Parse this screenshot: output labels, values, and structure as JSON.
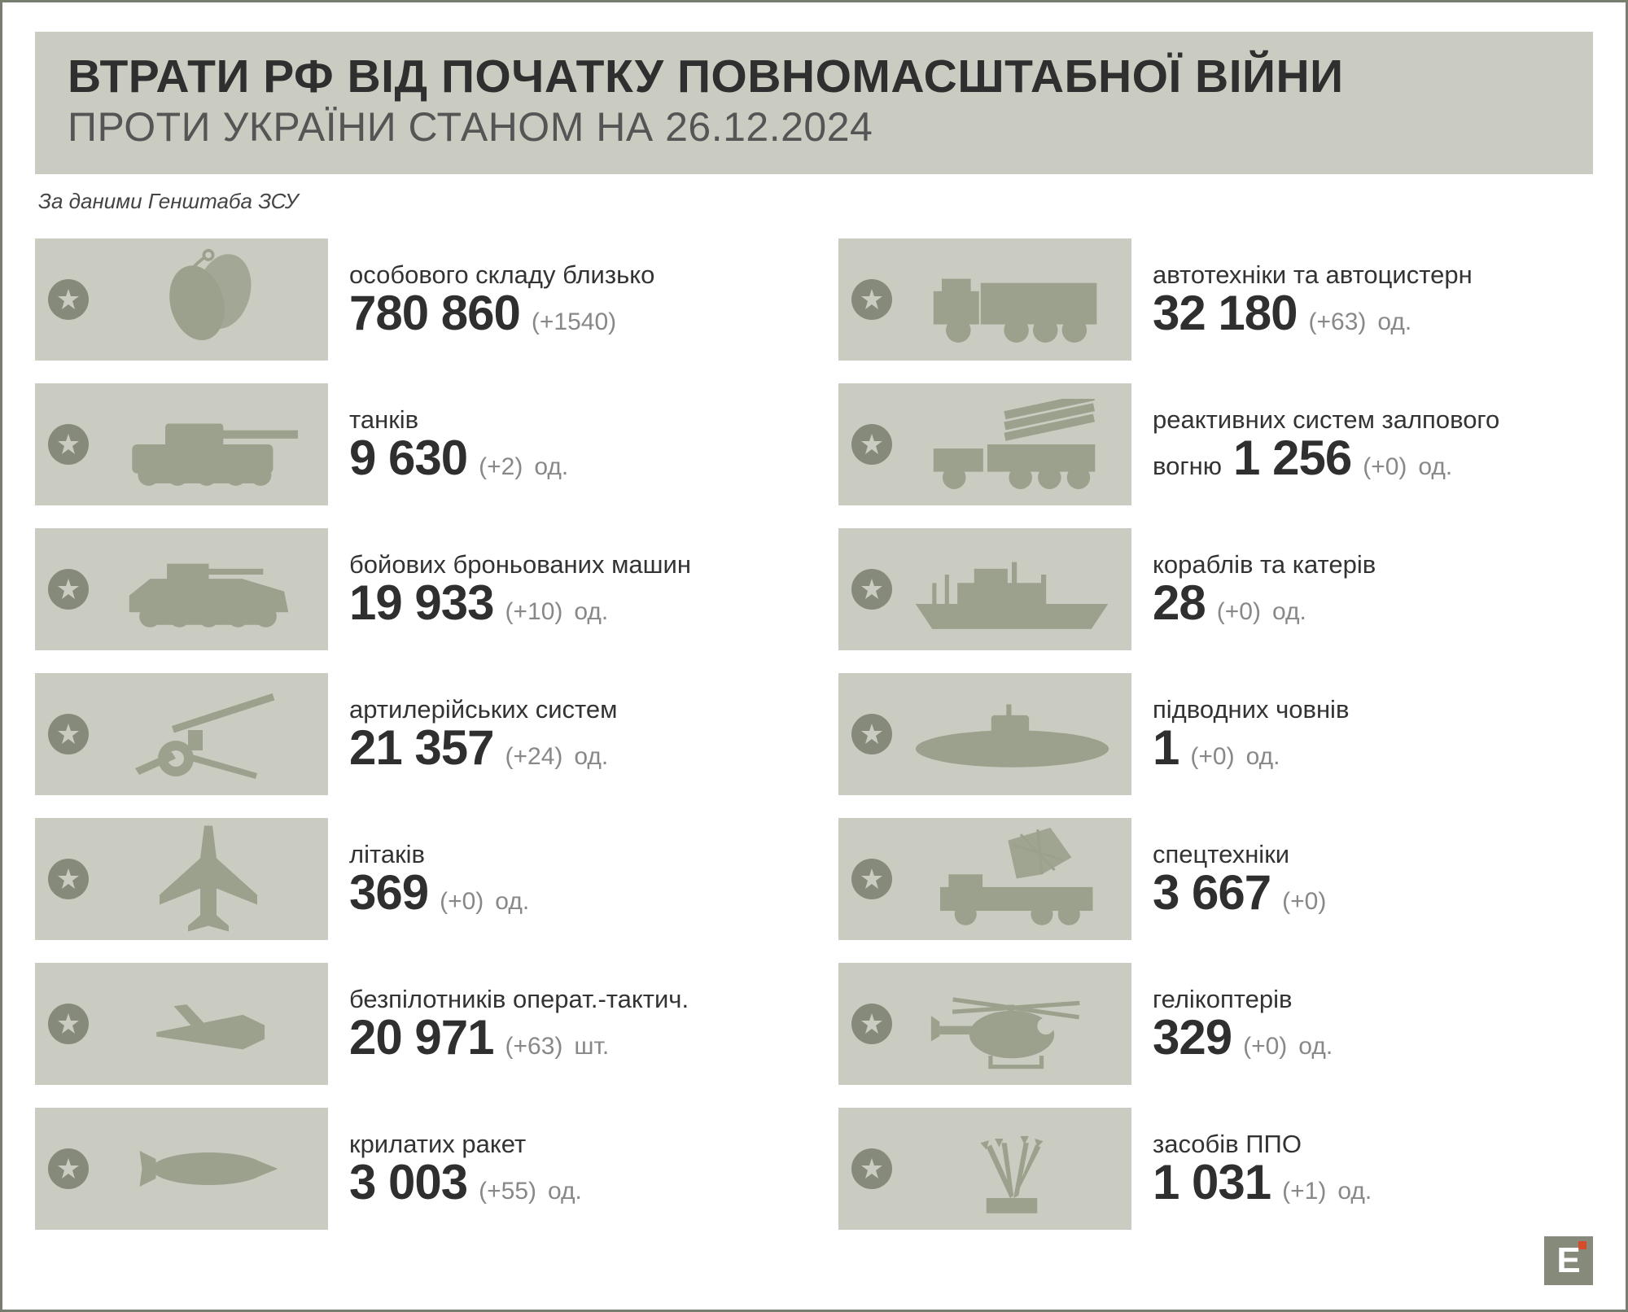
{
  "header": {
    "title": "ВТРАТИ РФ ВІД ПОЧАТКУ ПОВНОМАСШТАБНОЇ ВІЙНИ",
    "subtitle": "ПРОТИ УКРАЇНИ СТАНОМ НА 26.12.2024",
    "source": "За даними Генштаба ЗСУ"
  },
  "style": {
    "bg": "#ffffff",
    "block_bg": "#cbccc1",
    "silhouette_fill": "#9ba18d",
    "badge_fill": "#868a7b",
    "title_color": "#2f2f2f",
    "value_color": "#2f2f2f",
    "delta_color": "#888888",
    "border_color": "#787e6f",
    "title_fontsize": 57,
    "subtitle_fontsize": 50,
    "value_fontsize": 60,
    "label_fontsize": 31
  },
  "columns": {
    "left": [
      {
        "icon": "dogtags",
        "label": "особового складу близько",
        "value": "780 860",
        "delta": "(+1540)",
        "unit": ""
      },
      {
        "icon": "tank",
        "label": "танків",
        "value": "9 630",
        "delta": "(+2)",
        "unit": "од."
      },
      {
        "icon": "apc",
        "label": "бойових броньованих машин",
        "value": "19 933",
        "delta": "(+10)",
        "unit": "од."
      },
      {
        "icon": "artillery",
        "label": "артилерійських систем",
        "value": "21 357",
        "delta": "(+24)",
        "unit": "од."
      },
      {
        "icon": "jet",
        "label": "літаків",
        "value": "369",
        "delta": "(+0)",
        "unit": "од."
      },
      {
        "icon": "drone",
        "label": "безпілотників операт.-тактич.",
        "value": "20 971",
        "delta": "(+63)",
        "unit": "шт."
      },
      {
        "icon": "missile",
        "label": "крилатих ракет",
        "value": "3 003",
        "delta": "(+55)",
        "unit": "од."
      }
    ],
    "right": [
      {
        "icon": "truck",
        "label": "автотехніки та автоцистерн",
        "value": "32 180",
        "delta": "(+63)",
        "unit": "од."
      },
      {
        "icon": "mlrs",
        "label_pre": "реактивних систем залпового",
        "label_inline": "вогню",
        "value": "1 256",
        "delta": "(+0)",
        "unit": "од."
      },
      {
        "icon": "ship",
        "label": "кораблів та катерів",
        "value": "28",
        "delta": "(+0)",
        "unit": "од."
      },
      {
        "icon": "submarine",
        "label": "підводних човнів",
        "value": "1",
        "delta": "(+0)",
        "unit": "од."
      },
      {
        "icon": "radar",
        "label": "спецтехніки",
        "value": "3 667",
        "delta": "(+0)",
        "unit": ""
      },
      {
        "icon": "helicopter",
        "label": "гелікоптерів",
        "value": "329",
        "delta": "(+0)",
        "unit": "од."
      },
      {
        "icon": "sam",
        "label": "засобів ППО",
        "value": "1 031",
        "delta": "(+1)",
        "unit": "од."
      }
    ]
  },
  "logo": {
    "letter": "E"
  }
}
